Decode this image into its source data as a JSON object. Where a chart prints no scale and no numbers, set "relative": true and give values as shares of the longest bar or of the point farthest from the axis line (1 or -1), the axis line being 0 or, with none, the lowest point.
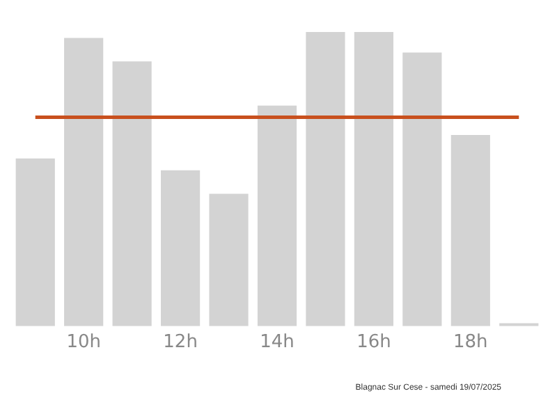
{
  "chart_data": {
    "type": "bar",
    "relative": true,
    "categories": [
      null,
      "10h",
      null,
      "12h",
      null,
      "14h",
      null,
      "16h",
      null,
      "18h",
      null
    ],
    "values": [
      0.57,
      0.98,
      0.9,
      0.53,
      0.45,
      0.75,
      1,
      1,
      0.93,
      0.65,
      0.01
    ],
    "color": "#d3d3d3",
    "ref_lines": [
      {
        "axis": "y",
        "value": 0.71,
        "color": "#c8501e"
      }
    ],
    "annotations": [
      "Blagnac Sur Cese - samedi 19/07/2025"
    ],
    "grid": false,
    "legend": false
  }
}
